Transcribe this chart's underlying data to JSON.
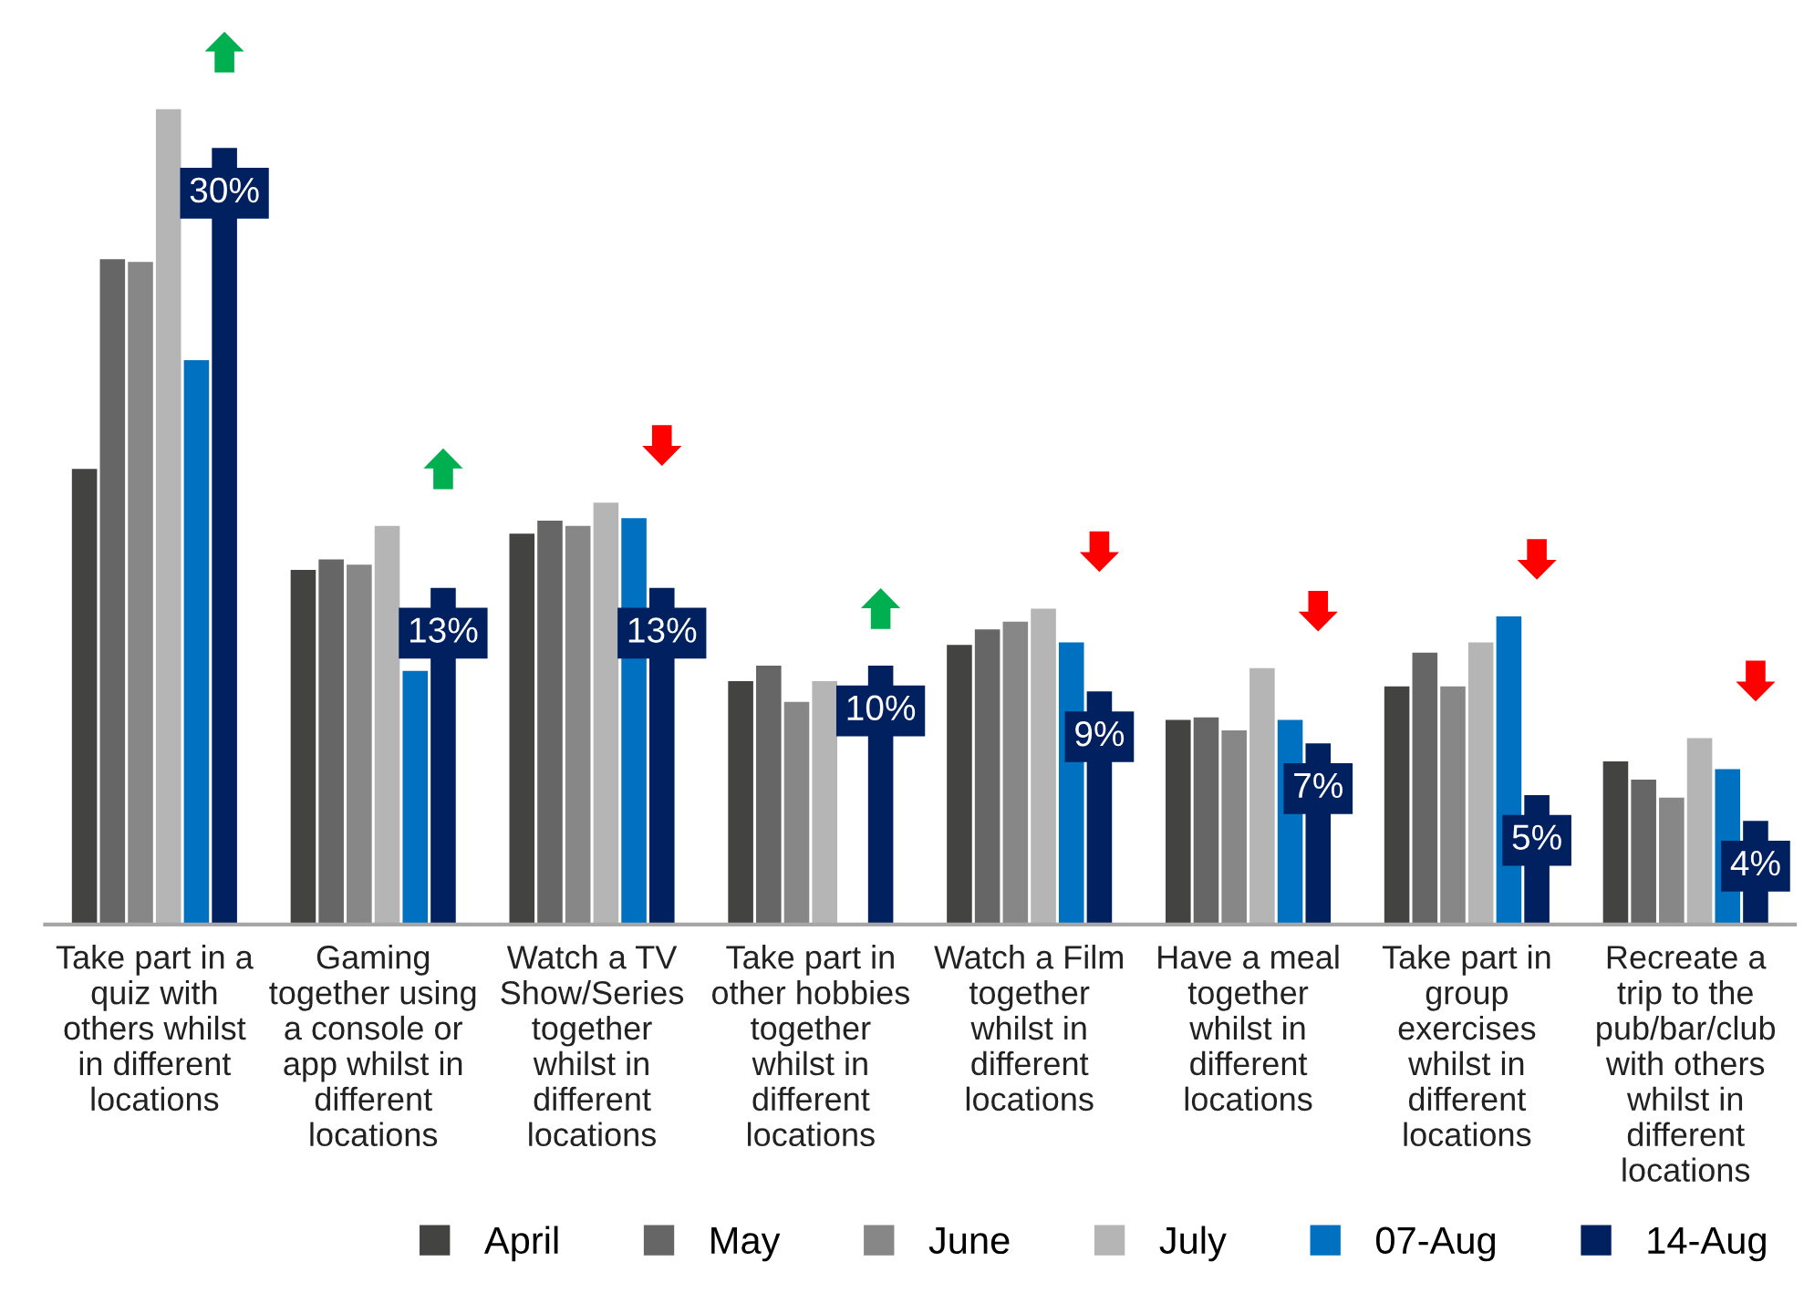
{
  "chart_data": {
    "type": "bar",
    "categories": [
      "Take part in a\nquiz with\nothers whilst\nin different\nlocations",
      "Gaming\ntogether using\na console or\napp whilst in\ndifferent\nlocations",
      "Watch a TV\nShow/Series\ntogether\nwhilst in\ndifferent\nlocations",
      "Take part in\nother hobbies\ntogether\nwhilst in\ndifferent\nlocations",
      "Watch a Film\ntogether\nwhilst in\ndifferent\nlocations",
      "Have a meal\ntogether\nwhilst in\ndifferent\nlocations",
      "Take part in\ngroup\nexercises\nwhilst in\ndifferent\nlocations",
      "Recreate a\ntrip to the\npub/bar/club\nwith others\nwhilst in\ndifferent\nlocations"
    ],
    "series": [
      {
        "name": "April",
        "color": "#434441",
        "values": [
          17.6,
          13.7,
          15.1,
          9.4,
          10.8,
          7.9,
          9.2,
          6.3
        ]
      },
      {
        "name": "May",
        "color": "#666666",
        "values": [
          25.7,
          14.1,
          15.6,
          10.0,
          11.4,
          8.0,
          10.5,
          5.6
        ]
      },
      {
        "name": "June",
        "color": "#868786",
        "values": [
          25.6,
          13.9,
          15.4,
          8.6,
          11.7,
          7.5,
          9.2,
          4.9
        ]
      },
      {
        "name": "July",
        "color": "#b5b5b5",
        "values": [
          31.5,
          15.4,
          16.3,
          9.4,
          12.2,
          9.9,
          10.9,
          7.2
        ]
      },
      {
        "name": "07-Aug",
        "color": "#0070c0",
        "values": [
          21.8,
          9.8,
          15.7,
          null,
          10.9,
          7.9,
          11.9,
          6.0
        ]
      },
      {
        "name": "14-Aug",
        "color": "#002060",
        "values": [
          30,
          13,
          13,
          10,
          9,
          7,
          5,
          4
        ],
        "value_labels": [
          "30%",
          "13%",
          "13%",
          "10%",
          "9%",
          "7%",
          "5%",
          "4%"
        ]
      }
    ],
    "tick_labels": "x",
    "legend": "bottom",
    "grid": false
  }
}
